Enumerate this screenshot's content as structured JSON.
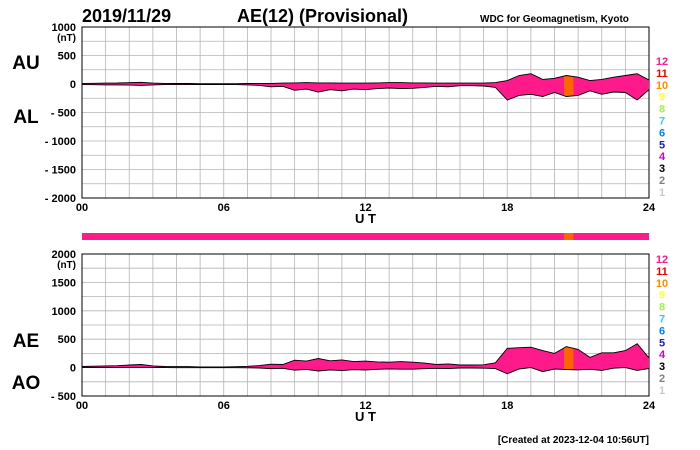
{
  "header": {
    "date": "2019/11/29",
    "title": "AE(12) (Provisional)",
    "source": "WDC for Geomagnetism, Kyoto"
  },
  "footer": {
    "created": "[Created at 2023-12-04 10:56UT]"
  },
  "legend": {
    "levels": [
      "12",
      "11",
      "10",
      "9",
      "8",
      "7",
      "6",
      "5",
      "4",
      "3",
      "2",
      "1"
    ],
    "colors": [
      "#ff1a8c",
      "#e60000",
      "#ff8c00",
      "#ffff33",
      "#99ff33",
      "#33ccff",
      "#0080ff",
      "#1a1acc",
      "#cc00cc",
      "#000000",
      "#808080",
      "#c8c8c8"
    ]
  },
  "station_bar": {
    "color": "#ff1a8c",
    "highlight_color": "#ff6600",
    "highlight_hours": [
      20.4,
      20.8
    ]
  },
  "chart_data": [
    {
      "type": "area",
      "name": "AU/AL",
      "labels": [
        "AU",
        "AL"
      ],
      "ylabel": "(nT)",
      "xlabel": "U T",
      "xlim": [
        0,
        24
      ],
      "ylim": [
        -2000,
        1000
      ],
      "xticks": [
        "00",
        "06",
        "12",
        "18",
        "24"
      ],
      "yticks": [
        "1000",
        "500",
        "0",
        "- 500",
        "- 1000",
        "- 1500",
        "- 2000"
      ],
      "fill_color": "#ff1a8c",
      "highlight_color": "#ff6600",
      "highlight_hours": [
        20.4,
        20.8
      ],
      "x": [
        0,
        0.5,
        1,
        1.5,
        2,
        2.5,
        3,
        3.5,
        4,
        4.5,
        5,
        5.5,
        6,
        6.5,
        7,
        7.5,
        8,
        8.5,
        9,
        9.5,
        10,
        10.5,
        11,
        11.5,
        12,
        12.5,
        13,
        13.5,
        14,
        14.5,
        15,
        15.5,
        16,
        16.5,
        17,
        17.5,
        18,
        18.5,
        19,
        19.5,
        20,
        20.5,
        21,
        21.5,
        22,
        22.5,
        23,
        23.5,
        24
      ],
      "series": [
        {
          "name": "AU",
          "values": [
            10,
            12,
            15,
            18,
            25,
            30,
            15,
            10,
            8,
            8,
            5,
            5,
            5,
            5,
            8,
            10,
            10,
            15,
            20,
            25,
            20,
            20,
            15,
            15,
            15,
            20,
            25,
            25,
            20,
            20,
            15,
            15,
            15,
            15,
            15,
            25,
            60,
            150,
            180,
            80,
            100,
            150,
            120,
            60,
            80,
            120,
            150,
            180,
            70
          ]
        },
        {
          "name": "AL",
          "values": [
            -10,
            -12,
            -15,
            -15,
            -20,
            -25,
            -15,
            -10,
            -10,
            -10,
            -8,
            -8,
            -8,
            -10,
            -15,
            -25,
            -50,
            -40,
            -110,
            -90,
            -140,
            -100,
            -120,
            -90,
            -100,
            -80,
            -70,
            -80,
            -75,
            -60,
            -40,
            -50,
            -30,
            -30,
            -35,
            -60,
            -280,
            -200,
            -180,
            -220,
            -150,
            -220,
            -200,
            -120,
            -180,
            -140,
            -150,
            -280,
            -100
          ]
        }
      ]
    },
    {
      "type": "area",
      "name": "AE/AO",
      "labels": [
        "AE",
        "AO"
      ],
      "ylabel": "(nT)",
      "xlabel": "U T",
      "xlim": [
        0,
        24
      ],
      "ylim": [
        -500,
        2000
      ],
      "xticks": [
        "00",
        "06",
        "12",
        "18",
        "24"
      ],
      "yticks": [
        "2000",
        "1500",
        "1000",
        "500",
        "0",
        "- 500"
      ],
      "fill_color": "#ff1a8c",
      "highlight_color": "#ff6600",
      "highlight_hours": [
        20.4,
        20.8
      ],
      "x": [
        0,
        0.5,
        1,
        1.5,
        2,
        2.5,
        3,
        3.5,
        4,
        4.5,
        5,
        5.5,
        6,
        6.5,
        7,
        7.5,
        8,
        8.5,
        9,
        9.5,
        10,
        10.5,
        11,
        11.5,
        12,
        12.5,
        13,
        13.5,
        14,
        14.5,
        15,
        15.5,
        16,
        16.5,
        17,
        17.5,
        18,
        18.5,
        19,
        19.5,
        20,
        20.5,
        21,
        21.5,
        22,
        22.5,
        23,
        23.5,
        24
      ],
      "series": [
        {
          "name": "AE",
          "values": [
            20,
            24,
            30,
            33,
            45,
            55,
            30,
            20,
            18,
            18,
            13,
            13,
            13,
            15,
            23,
            35,
            60,
            55,
            130,
            115,
            160,
            120,
            135,
            105,
            115,
            100,
            95,
            105,
            95,
            80,
            55,
            65,
            45,
            45,
            50,
            85,
            340,
            350,
            360,
            300,
            250,
            370,
            320,
            180,
            260,
            260,
            300,
            420,
            170
          ]
        },
        {
          "name": "AO",
          "values": [
            0,
            0,
            0,
            1.5,
            2.5,
            2.5,
            0,
            0,
            -1,
            -1,
            -1.5,
            -1.5,
            -1.5,
            -2.5,
            -3.5,
            -7.5,
            -20,
            -12.5,
            -45,
            -32.5,
            -60,
            -40,
            -52.5,
            -37.5,
            -42.5,
            -30,
            -22.5,
            -27.5,
            -27.5,
            -20,
            -12.5,
            -17.5,
            -7.5,
            -7.5,
            -10,
            -17.5,
            -110,
            -25,
            0,
            -70,
            -25,
            -35,
            -40,
            -30,
            -50,
            -10,
            0,
            -50,
            -15
          ]
        }
      ]
    }
  ]
}
